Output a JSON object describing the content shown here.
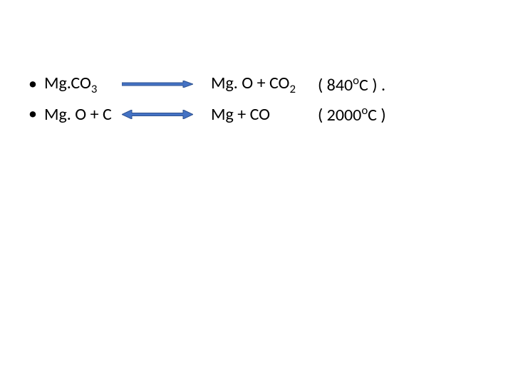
{
  "reactions": [
    {
      "reactant_html": "Mg.CO<sub>3</sub>",
      "product_html": "Mg. O +  CO<sub>2</sub>",
      "temp_html": "( 840<sup>o</sup>C ) .",
      "arrow": {
        "type": "single",
        "shaft_fill": "#4472c4",
        "head_fill": "#4472c4",
        "stroke": "#2f528f",
        "stroke_width": 1,
        "length": 100,
        "height": 10
      }
    },
    {
      "reactant_html": "Mg. O + C",
      "product_html": "Mg + CO",
      "temp_html": "( 2000<sup>o</sup>C )",
      "arrow": {
        "type": "double",
        "shaft_fill": "#4472c4",
        "head_fill": "#4472c4",
        "stroke": "#2f528f",
        "stroke_width": 1,
        "length": 100,
        "height": 13
      }
    }
  ],
  "text_color": "#000000",
  "background_color": "#ffffff",
  "font_size_pt": 18
}
